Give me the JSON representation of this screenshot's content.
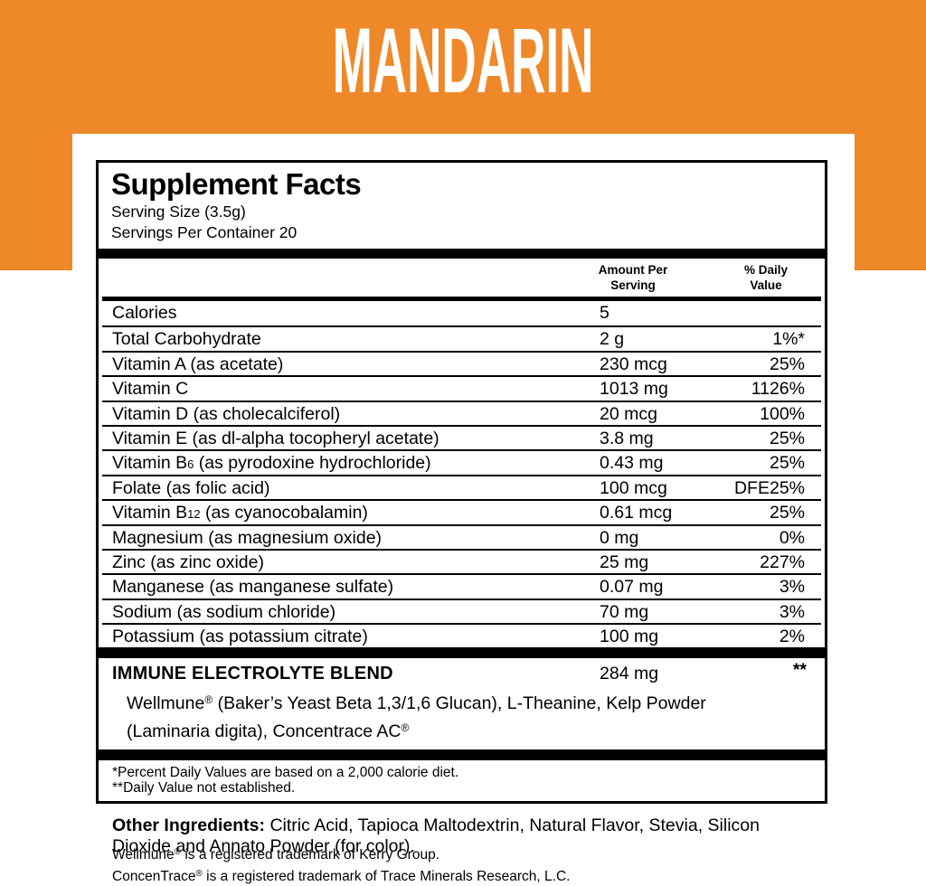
{
  "flavor_title": "MANDARIN",
  "colors": {
    "accent_orange": "#EF8829",
    "text_black": "#000000",
    "background_white": "#FFFFFF"
  },
  "panel": {
    "title": "Supplement Facts",
    "serving_size": "Serving Size (3.5g)",
    "servings_per_container": "Servings Per Container 20",
    "col_amount": "Amount Per\nServing",
    "col_dv": "% Daily\nValue",
    "rows": [
      {
        "name": "Calories",
        "amount": "5",
        "dv": ""
      },
      {
        "name": "Total Carbohydrate",
        "amount": "2 g",
        "dv": "1%*"
      },
      {
        "name": "Vitamin A (as acetate)",
        "amount": "230 mcg",
        "dv": "25%"
      },
      {
        "name": "Vitamin C",
        "amount": "1013 mg",
        "dv": "1126%"
      },
      {
        "name": "Vitamin D (as cholecalciferol)",
        "amount": "20 mcg",
        "dv": "100%"
      },
      {
        "name": "Vitamin E (as dl-alpha tocopheryl acetate)",
        "amount": "3.8 mg",
        "dv": "25%"
      },
      {
        "name_pre": "Vitamin B",
        "name_sub": "6",
        "name_post": " (as pyrodoxine hydrochloride)",
        "amount": "0.43 mg",
        "dv": "25%"
      },
      {
        "name": "Folate (as folic acid)",
        "amount": "100 mcg",
        "dv": "DFE25%"
      },
      {
        "name_pre": "Vitamin B",
        "name_sub": "12",
        "name_post": " (as cyanocobalamin)",
        "amount": "0.61 mcg",
        "dv": "25%"
      },
      {
        "name": "Magnesium (as magnesium oxide)",
        "amount": "0 mg",
        "dv": "0%"
      },
      {
        "name": "Zinc (as zinc oxide)",
        "amount": "25 mg",
        "dv": "227%"
      },
      {
        "name": "Manganese (as manganese sulfate)",
        "amount": "0.07 mg",
        "dv": "3%"
      },
      {
        "name": "Sodium (as sodium chloride)",
        "amount": "70 mg",
        "dv": "3%"
      },
      {
        "name": "Potassium (as potassium citrate)",
        "amount": "100 mg",
        "dv": "2%"
      }
    ],
    "blend": {
      "title": "IMMUNE ELECTROLYTE BLEND",
      "amount": "284 mg",
      "dv": "**",
      "desc_1": "Wellmune",
      "reg_1": "®",
      "desc_2": " (Baker’s Yeast Beta 1,3/1,6 Glucan), L-Theanine, Kelp Powder\n(Laminaria digita), Concentrace AC",
      "reg_2": "®"
    },
    "footnotes": [
      "*Percent Daily Values are based on a 2,000 calorie diet.",
      "**Daily Value not established."
    ]
  },
  "other_ingredients": {
    "label": "Other Ingredients:",
    "text": " Citric Acid, Tapioca Maltodextrin, Natural Flavor, Stevia, Silicon\nDioxide and Annato Powder (for color)."
  },
  "trademarks": [
    {
      "pre": "Wellmune",
      "reg": "®",
      "post": " is a registered trademark of Kerry Group."
    },
    {
      "pre": "ConcenTrace",
      "reg": "®",
      "post": " is a registered trademark of Trace Minerals Research, L.C."
    }
  ]
}
